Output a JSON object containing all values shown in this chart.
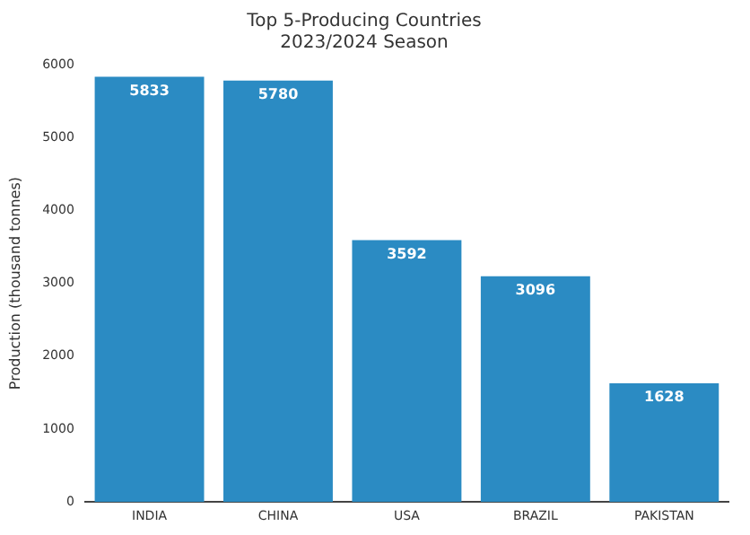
{
  "chart_data": {
    "type": "bar",
    "title": "Top 5-Producing Countries\n2023/2024 Season",
    "ylabel": "Production (thousand tonnes)",
    "categories": [
      "INDIA",
      "CHINA",
      "USA",
      "BRAZIL",
      "PAKISTAN"
    ],
    "values": [
      5833,
      5780,
      3592,
      3096,
      1628
    ],
    "color": "#2b8bc3",
    "ylim": [
      0,
      6000
    ],
    "yticks": [
      0,
      1000,
      2000,
      3000,
      4000,
      5000,
      6000
    ],
    "grid": false,
    "data_labels": true,
    "legend": false
  }
}
